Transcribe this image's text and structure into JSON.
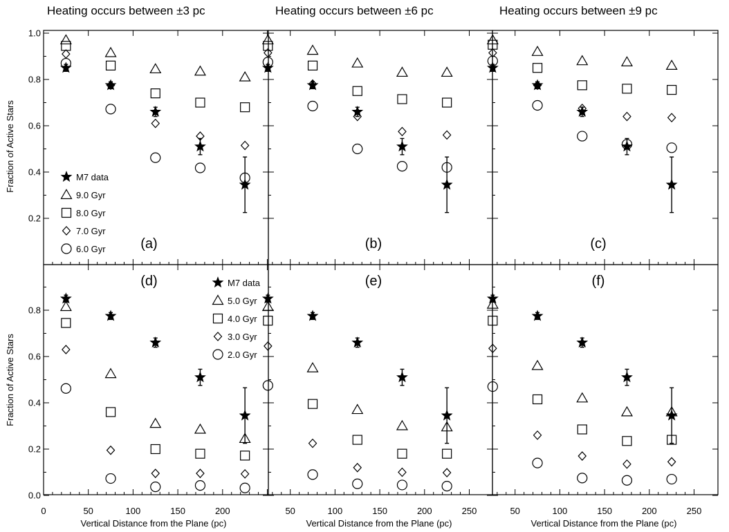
{
  "chart_data": {
    "type": "scatter",
    "layout": "2 rows x 3 columns of panels",
    "column_titles": [
      "Heating occurs between  ±3 pc",
      "Heating occurs between  ±6 pc",
      "Heating occurs between  ±9 pc"
    ],
    "xlabel": "Vertical Distance from the Plane (pc)",
    "ylabel": "Fraction of Active Stars",
    "xlim": [
      0,
      250
    ],
    "ylim": [
      0,
      1.0
    ],
    "x_ticks": [
      0,
      50,
      100,
      150,
      200,
      250
    ],
    "x_tick_labels": [
      "0",
      "50",
      "100",
      "150",
      "200",
      "250"
    ],
    "y_ticks_top_row": [
      "0.2",
      "0.4",
      "0.6",
      "0.8",
      "1.0"
    ],
    "y_ticks_bottom_row": [
      "0.0",
      "0.2",
      "0.4",
      "0.6",
      "0.8"
    ],
    "x": [
      25,
      75,
      125,
      175,
      225
    ],
    "m7_data": {
      "name": "M7 data",
      "values": [
        0.85,
        0.775,
        0.66,
        0.51,
        0.345
      ],
      "err": [
        0.015,
        0.015,
        0.02,
        0.035,
        0.12
      ]
    },
    "panels": [
      {
        "label": "(a)",
        "row": 0,
        "col": 0,
        "legend": true,
        "series": [
          {
            "name": "9.0 Gyr",
            "marker": "triangle",
            "values": [
              0.97,
              0.915,
              0.845,
              0.835,
              0.81
            ]
          },
          {
            "name": "8.0 Gyr",
            "marker": "square",
            "values": [
              0.945,
              0.86,
              0.74,
              0.7,
              0.68
            ]
          },
          {
            "name": "7.0 Gyr",
            "marker": "diamond",
            "values": [
              0.91,
              0.775,
              0.61,
              0.555,
              0.515
            ]
          },
          {
            "name": "6.0 Gyr",
            "marker": "circle",
            "values": [
              0.87,
              0.672,
              0.462,
              0.418,
              0.375
            ]
          }
        ]
      },
      {
        "label": "(b)",
        "row": 0,
        "col": 1,
        "legend": false,
        "series": [
          {
            "name": "9.0 Gyr",
            "marker": "triangle",
            "values": [
              0.97,
              0.925,
              0.87,
              0.83,
              0.83
            ]
          },
          {
            "name": "8.0 Gyr",
            "marker": "square",
            "values": [
              0.945,
              0.86,
              0.75,
              0.715,
              0.7
            ]
          },
          {
            "name": "7.0 Gyr",
            "marker": "diamond",
            "values": [
              0.915,
              0.78,
              0.64,
              0.575,
              0.56
            ]
          },
          {
            "name": "6.0 Gyr",
            "marker": "circle",
            "values": [
              0.875,
              0.685,
              0.5,
              0.425,
              0.42
            ]
          }
        ]
      },
      {
        "label": "(c)",
        "row": 0,
        "col": 2,
        "legend": false,
        "series": [
          {
            "name": "9.0 Gyr",
            "marker": "triangle",
            "values": [
              0.97,
              0.92,
              0.88,
              0.875,
              0.86
            ]
          },
          {
            "name": "8.0 Gyr",
            "marker": "square",
            "values": [
              0.95,
              0.85,
              0.775,
              0.76,
              0.755
            ]
          },
          {
            "name": "7.0 Gyr",
            "marker": "diamond",
            "values": [
              0.915,
              0.775,
              0.675,
              0.64,
              0.635
            ]
          },
          {
            "name": "6.0 Gyr",
            "marker": "circle",
            "values": [
              0.88,
              0.688,
              0.555,
              0.52,
              0.505
            ]
          }
        ]
      },
      {
        "label": "(d)",
        "row": 1,
        "col": 0,
        "legend": true,
        "series": [
          {
            "name": "5.0 Gyr",
            "marker": "triangle",
            "values": [
              0.815,
              0.525,
              0.31,
              0.285,
              0.245
            ]
          },
          {
            "name": "4.0 Gyr",
            "marker": "square",
            "values": [
              0.745,
              0.36,
              0.2,
              0.18,
              0.172
            ]
          },
          {
            "name": "3.0 Gyr",
            "marker": "diamond",
            "values": [
              0.63,
              0.195,
              0.095,
              0.095,
              0.093
            ]
          },
          {
            "name": "2.0 Gyr",
            "marker": "circle",
            "values": [
              0.462,
              0.073,
              0.037,
              0.043,
              0.032
            ]
          }
        ]
      },
      {
        "label": "(e)",
        "row": 1,
        "col": 1,
        "legend": false,
        "series": [
          {
            "name": "5.0 Gyr",
            "marker": "triangle",
            "values": [
              0.815,
              0.55,
              0.37,
              0.3,
              0.295
            ]
          },
          {
            "name": "4.0 Gyr",
            "marker": "square",
            "values": [
              0.755,
              0.395,
              0.24,
              0.18,
              0.18
            ]
          },
          {
            "name": "3.0 Gyr",
            "marker": "diamond",
            "values": [
              0.645,
              0.225,
              0.12,
              0.1,
              0.098
            ]
          },
          {
            "name": "2.0 Gyr",
            "marker": "circle",
            "values": [
              0.475,
              0.09,
              0.05,
              0.045,
              0.04
            ]
          }
        ]
      },
      {
        "label": "(f)",
        "row": 1,
        "col": 2,
        "legend": false,
        "series": [
          {
            "name": "5.0 Gyr",
            "marker": "triangle",
            "values": [
              0.825,
              0.56,
              0.42,
              0.36,
              0.36
            ]
          },
          {
            "name": "4.0 Gyr",
            "marker": "square",
            "values": [
              0.755,
              0.415,
              0.285,
              0.235,
              0.24
            ]
          },
          {
            "name": "3.0 Gyr",
            "marker": "diamond",
            "values": [
              0.635,
              0.26,
              0.17,
              0.135,
              0.145
            ]
          },
          {
            "name": "2.0 Gyr",
            "marker": "circle",
            "values": [
              0.47,
              0.14,
              0.075,
              0.065,
              0.07
            ]
          }
        ]
      }
    ]
  }
}
